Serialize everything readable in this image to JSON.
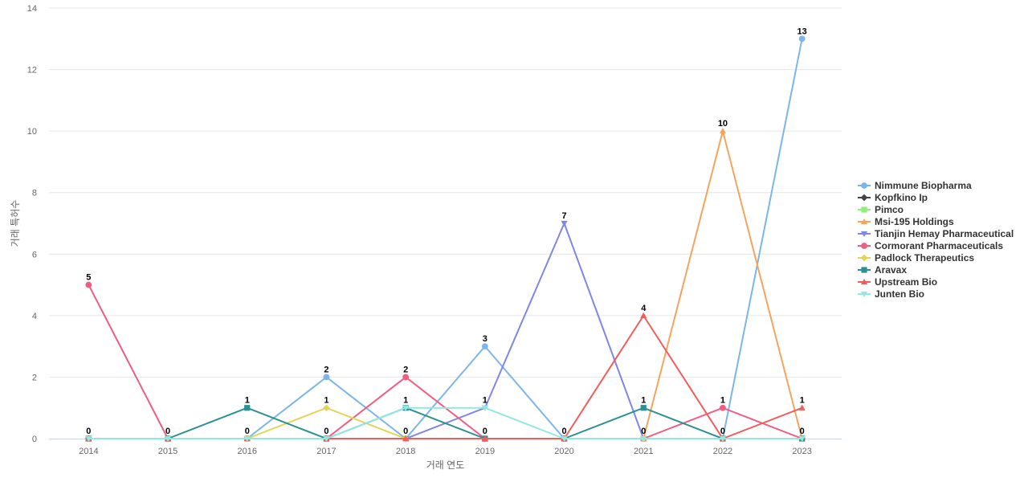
{
  "chart_data": {
    "type": "line",
    "title": "",
    "xlabel": "거래 연도",
    "ylabel": "거래 특허수",
    "categories": [
      "2014",
      "2015",
      "2016",
      "2017",
      "2018",
      "2019",
      "2020",
      "2021",
      "2022",
      "2023"
    ],
    "ylim": [
      0,
      14
    ],
    "yticks": [
      0,
      2,
      4,
      6,
      8,
      10,
      12,
      14
    ],
    "grid": true,
    "legend_position": "right",
    "series": [
      {
        "name": "Nimmune Biopharma",
        "color": "#7cb5ec",
        "marker": "circle",
        "values": [
          0,
          0,
          0,
          2,
          0,
          3,
          0,
          0,
          0,
          13
        ]
      },
      {
        "name": "Kopfkino Ip",
        "color": "#434348",
        "marker": "diamond",
        "values": [
          0,
          0,
          0,
          0,
          0,
          0,
          0,
          0,
          0,
          0
        ]
      },
      {
        "name": "Pimco",
        "color": "#90ed7d",
        "marker": "square",
        "values": [
          0,
          0,
          0,
          0,
          0,
          0,
          0,
          0,
          0,
          0
        ]
      },
      {
        "name": "Msi-195 Holdings",
        "color": "#f7a35c",
        "marker": "triangle",
        "values": [
          0,
          0,
          0,
          0,
          0,
          0,
          0,
          0,
          10,
          0
        ]
      },
      {
        "name": "Tianjin Hemay Pharmaceutical",
        "color": "#8085e9",
        "marker": "triangle-down",
        "values": [
          0,
          0,
          0,
          0,
          0,
          1,
          7,
          0,
          0,
          0
        ]
      },
      {
        "name": "Cormorant Pharmaceuticals",
        "color": "#f15c80",
        "marker": "circle",
        "values": [
          5,
          0,
          0,
          0,
          2,
          0,
          0,
          0,
          1,
          0
        ]
      },
      {
        "name": "Padlock Therapeutics",
        "color": "#e4d354",
        "marker": "diamond",
        "values": [
          0,
          0,
          0,
          1,
          0,
          0,
          0,
          0,
          0,
          0
        ]
      },
      {
        "name": "Aravax",
        "color": "#2b908f",
        "marker": "square",
        "values": [
          0,
          0,
          1,
          0,
          1,
          0,
          0,
          1,
          0,
          0
        ]
      },
      {
        "name": "Upstream Bio",
        "color": "#f45b5b",
        "marker": "triangle",
        "values": [
          0,
          0,
          0,
          0,
          0,
          0,
          0,
          4,
          0,
          1
        ]
      },
      {
        "name": "Junten Bio",
        "color": "#91e8e1",
        "marker": "triangle-down",
        "values": [
          0,
          0,
          0,
          0,
          1,
          1,
          0,
          0,
          0,
          0
        ]
      }
    ],
    "data_labels": [
      {
        "x": "2014",
        "y": 5,
        "text": "5"
      },
      {
        "x": "2014",
        "y": 0,
        "text": "0"
      },
      {
        "x": "2015",
        "y": 0,
        "text": "0"
      },
      {
        "x": "2016",
        "y": 1,
        "text": "1"
      },
      {
        "x": "2016",
        "y": 0,
        "text": "0"
      },
      {
        "x": "2017",
        "y": 2,
        "text": "2"
      },
      {
        "x": "2017",
        "y": 1,
        "text": "1"
      },
      {
        "x": "2017",
        "y": 0,
        "text": "0"
      },
      {
        "x": "2018",
        "y": 2,
        "text": "2"
      },
      {
        "x": "2018",
        "y": 1,
        "text": "1"
      },
      {
        "x": "2018",
        "y": 0,
        "text": "0"
      },
      {
        "x": "2019",
        "y": 3,
        "text": "3"
      },
      {
        "x": "2019",
        "y": 1,
        "text": "1"
      },
      {
        "x": "2019",
        "y": 0,
        "text": "0"
      },
      {
        "x": "2020",
        "y": 7,
        "text": "7"
      },
      {
        "x": "2020",
        "y": 0,
        "text": "0"
      },
      {
        "x": "2021",
        "y": 4,
        "text": "4"
      },
      {
        "x": "2021",
        "y": 1,
        "text": "1"
      },
      {
        "x": "2021",
        "y": 0,
        "text": "0"
      },
      {
        "x": "2022",
        "y": 10,
        "text": "10"
      },
      {
        "x": "2022",
        "y": 1,
        "text": "1"
      },
      {
        "x": "2022",
        "y": 0,
        "text": "0"
      },
      {
        "x": "2023",
        "y": 13,
        "text": "13"
      },
      {
        "x": "2023",
        "y": 1,
        "text": "1"
      },
      {
        "x": "2023",
        "y": 0,
        "text": "0"
      }
    ]
  }
}
